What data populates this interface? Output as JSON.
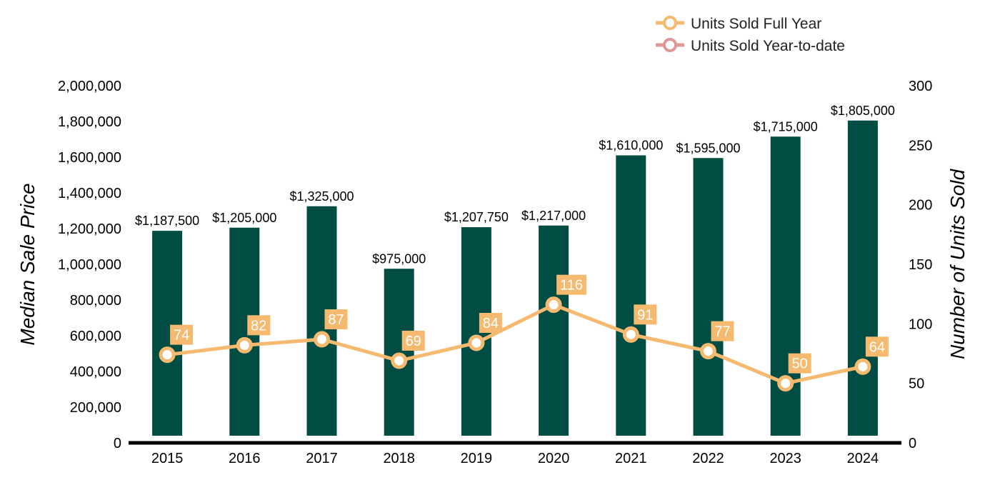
{
  "colors": {
    "bar": "#014d43",
    "line_full_year": "#f5b96f",
    "line_ytd": "#e09896",
    "axis": "#000000",
    "label_box": "#f5b96f"
  },
  "legend": {
    "items": [
      {
        "label": "Units Sold Full Year",
        "color": "#f5b96f"
      },
      {
        "label": "Units Sold Year-to-date",
        "color": "#e09896"
      }
    ],
    "position": "top-right"
  },
  "chart_data": {
    "type": "bar",
    "categories": [
      "2015",
      "2016",
      "2017",
      "2018",
      "2019",
      "2020",
      "2021",
      "2022",
      "2023",
      "2024"
    ],
    "series": [
      {
        "type": "bar",
        "axis": "left",
        "values": [
          1187500,
          1205000,
          1325000,
          975000,
          1207750,
          1217000,
          1610000,
          1595000,
          1715000,
          1805000
        ],
        "labels": [
          "$1,187,500",
          "$1,205,000",
          "$1,325,000",
          "$975,000",
          "$1,207,750",
          "$1,217,000",
          "$1,610,000",
          "$1,595,000",
          "$1,715,000",
          "$1,805,000"
        ]
      },
      {
        "type": "line",
        "axis": "right",
        "name": "Units Sold Full Year",
        "values": [
          74,
          82,
          87,
          69,
          84,
          116,
          91,
          77,
          50,
          64
        ],
        "labels": [
          "74",
          "82",
          "87",
          "69",
          "84",
          "116",
          "91",
          "77",
          "50",
          "64"
        ]
      }
    ],
    "ylabel": "Median Sale Price",
    "y2label": "Number of Units Sold",
    "ylim": [
      0,
      2000000
    ],
    "y2lim": [
      0,
      300
    ],
    "yticks": [
      "0",
      "200,000",
      "400,000",
      "600,000",
      "800,000",
      "1,000,000",
      "1,200,000",
      "1,400,000",
      "1,600,000",
      "1,800,000",
      "2,000,000"
    ],
    "y2ticks": [
      "0",
      "50",
      "100",
      "150",
      "200",
      "250",
      "300"
    ],
    "grid": false
  }
}
